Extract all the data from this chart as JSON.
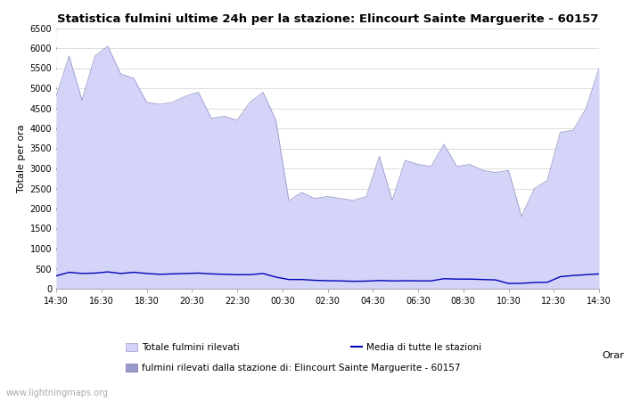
{
  "title": "Statistica fulmini ultime 24h per la stazione: Elincourt Sainte Marguerite - 60157",
  "ylabel": "Totale per ora",
  "xlabel_right": "Orario",
  "yticks": [
    0,
    500,
    1000,
    1500,
    2000,
    2500,
    3000,
    3500,
    4000,
    4500,
    5000,
    5500,
    6000,
    6500
  ],
  "ylim": [
    0,
    6500
  ],
  "xtick_labels": [
    "14:30",
    "16:30",
    "18:30",
    "20:30",
    "22:30",
    "00:30",
    "02:30",
    "04:30",
    "06:30",
    "08:30",
    "10:30",
    "12:30",
    "14:30"
  ],
  "bg_color": "#ffffff",
  "grid_color": "#cccccc",
  "area_fill_color": "#d4d4f8",
  "area_edge_color": "#9999cc",
  "station_fill_color": "#9999cc",
  "station_edge_color": "#7777aa",
  "line_color": "#0000bb",
  "watermark": "www.lightningmaps.org",
  "legend_label_total": "Totale fulmini rilevati",
  "legend_label_media": "Media di tutte le stazioni",
  "legend_label_station": "fulmini rilevati dalla stazione di: Elincourt Sainte Marguerite - 60157",
  "total_values": [
    4800,
    5800,
    4700,
    5800,
    6050,
    5350,
    5250,
    4650,
    4600,
    4650,
    4800,
    4900,
    4250,
    4300,
    4200,
    4650,
    4900,
    4200,
    2200,
    2400,
    2250,
    2300,
    2250,
    2200,
    2300,
    3300,
    2200,
    3200,
    3100,
    3050,
    3600,
    3050,
    3100,
    2950,
    2900,
    2950,
    1800,
    2500,
    2700,
    3900,
    3950,
    4500,
    5500
  ],
  "media_values": [
    320,
    410,
    380,
    390,
    420,
    380,
    410,
    380,
    360,
    370,
    380,
    390,
    370,
    360,
    350,
    350,
    380,
    290,
    230,
    230,
    210,
    200,
    195,
    185,
    190,
    205,
    195,
    200,
    195,
    195,
    250,
    240,
    240,
    230,
    220,
    130,
    135,
    155,
    160,
    300,
    330,
    350,
    370
  ],
  "station_values": [
    0,
    0,
    0,
    0,
    0,
    0,
    0,
    0,
    0,
    0,
    0,
    0,
    0,
    0,
    0,
    0,
    0,
    0,
    0,
    0,
    0,
    0,
    0,
    0,
    0,
    0,
    0,
    0,
    0,
    0,
    0,
    0,
    0,
    0,
    0,
    0,
    0,
    0,
    0,
    0,
    0,
    0,
    0
  ],
  "n_points": 43
}
